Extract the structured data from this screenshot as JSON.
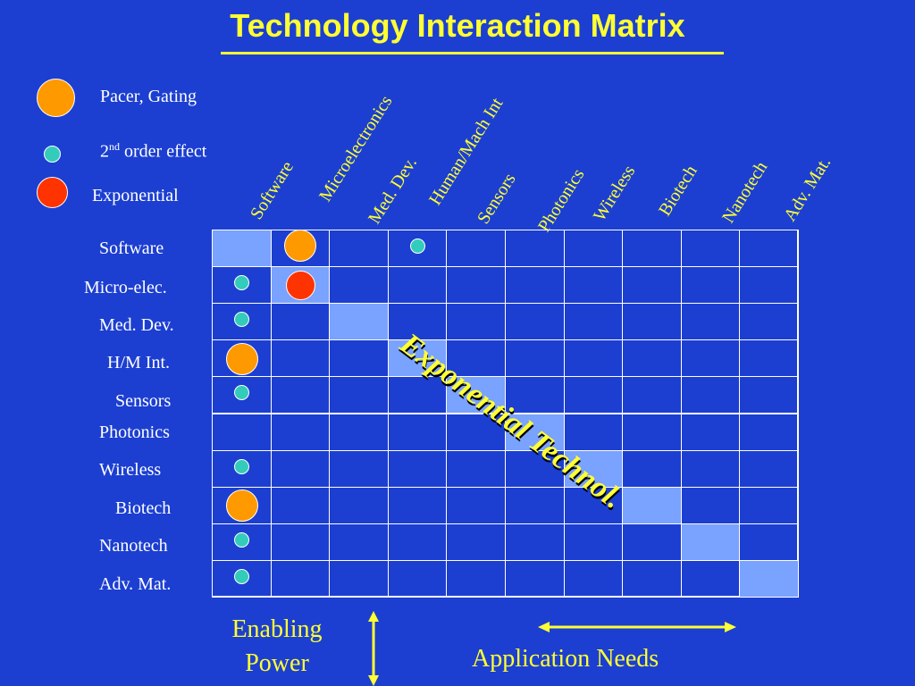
{
  "title": "Technology Interaction Matrix",
  "legend": [
    {
      "kind": "pacer",
      "label": "Pacer, Gating",
      "color": "#ff9900"
    },
    {
      "kind": "second",
      "label_main": "2",
      "label_sup": "nd",
      "label_rest": " order effect",
      "color": "#33ccbb"
    },
    {
      "kind": "expo",
      "label": "Exponential",
      "color": "#ff3300"
    }
  ],
  "columns": [
    "Software",
    "Microelectronics",
    "Med. Dev.",
    "Human/Mach Int",
    "Sensors",
    "Photonics",
    "Wireless",
    "Biotech",
    "Nanotech",
    "Adv. Mat."
  ],
  "rows": [
    "Software",
    "Micro-elec.",
    "Med. Dev.",
    "H/M Int.",
    "Sensors",
    "Photonics",
    "Wireless",
    "Biotech",
    "Nanotech",
    "Adv. Mat."
  ],
  "marks": [
    {
      "row": 0,
      "col": 1,
      "type": "pacer"
    },
    {
      "row": 0,
      "col": 3,
      "type": "second"
    },
    {
      "row": 1,
      "col": 0,
      "type": "second"
    },
    {
      "row": 1,
      "col": 1,
      "type": "expo"
    },
    {
      "row": 2,
      "col": 0,
      "type": "second"
    },
    {
      "row": 3,
      "col": 0,
      "type": "pacer"
    },
    {
      "row": 4,
      "col": 0,
      "type": "second"
    },
    {
      "row": 6,
      "col": 0,
      "type": "second"
    },
    {
      "row": 7,
      "col": 0,
      "type": "pacer"
    },
    {
      "row": 8,
      "col": 0,
      "type": "second"
    },
    {
      "row": 9,
      "col": 0,
      "type": "second"
    }
  ],
  "diagonal_label": "Exponential Technol.",
  "bottom": {
    "enabling_line1": "Enabling",
    "enabling_line2": "Power",
    "application": "Application Needs"
  },
  "colors": {
    "background": "#1c3fd1",
    "diagonal_cell": "#7aa2ff",
    "accent": "#ffff33"
  }
}
